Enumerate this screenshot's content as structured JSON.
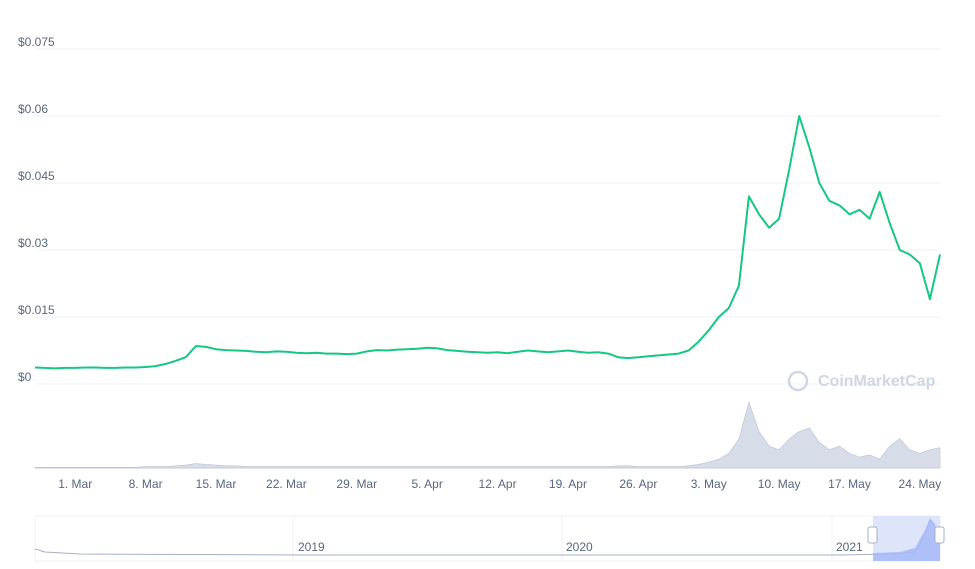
{
  "chart_data": {
    "type": "line",
    "watermark": "CoinMarketCap",
    "categories": [
      null,
      null,
      null,
      null,
      "1. Mar",
      null,
      null,
      null,
      null,
      null,
      null,
      "8. Mar",
      null,
      null,
      null,
      null,
      null,
      null,
      "15. Mar",
      null,
      null,
      null,
      null,
      null,
      null,
      "22. Mar",
      null,
      null,
      null,
      null,
      null,
      null,
      "29. Mar",
      null,
      null,
      null,
      null,
      null,
      null,
      "5. Apr",
      null,
      null,
      null,
      null,
      null,
      null,
      "12. Apr",
      null,
      null,
      null,
      null,
      null,
      null,
      "19. Apr",
      null,
      null,
      null,
      null,
      null,
      null,
      "26. Apr",
      null,
      null,
      null,
      null,
      null,
      null,
      "3. May",
      null,
      null,
      null,
      null,
      null,
      null,
      "10. May",
      null,
      null,
      null,
      null,
      null,
      null,
      "17. May",
      null,
      null,
      null,
      null,
      null,
      null,
      "24. May",
      null,
      null
    ],
    "series": [
      {
        "color": "#16c784",
        "values": [
          0.0037,
          0.0036,
          0.0035,
          0.0036,
          0.0036,
          0.0037,
          0.0037,
          0.0036,
          0.0036,
          0.0037,
          0.0037,
          0.0038,
          0.004,
          0.0045,
          0.0052,
          0.006,
          0.0085,
          0.0083,
          0.0078,
          0.0076,
          0.0075,
          0.0074,
          0.0072,
          0.0071,
          0.0073,
          0.0072,
          0.007,
          0.0069,
          0.007,
          0.0068,
          0.0068,
          0.0067,
          0.0068,
          0.0073,
          0.0076,
          0.0075,
          0.0077,
          0.0078,
          0.0079,
          0.0081,
          0.008,
          0.0076,
          0.0074,
          0.0072,
          0.0071,
          0.007,
          0.0071,
          0.0069,
          0.0072,
          0.0075,
          0.0073,
          0.0071,
          0.0073,
          0.0075,
          0.0072,
          0.007,
          0.0071,
          0.0068,
          0.006,
          0.0058,
          0.006,
          0.0062,
          0.0064,
          0.0066,
          0.0068,
          0.0075,
          0.0095,
          0.012,
          0.015,
          0.017,
          0.022,
          0.042,
          0.038,
          0.035,
          0.037,
          0.048,
          0.06,
          0.053,
          0.045,
          0.041,
          0.04,
          0.038,
          0.039,
          0.037,
          0.043,
          0.036,
          0.03,
          0.029,
          0.027,
          0.019,
          0.029
        ]
      },
      {
        "color": "#cfd6e4",
        "axis": "y2",
        "values": [
          1,
          1,
          1,
          1,
          1,
          1,
          1,
          1,
          1,
          1,
          1,
          2,
          2,
          2,
          3,
          4,
          6,
          5,
          4,
          3,
          3,
          2,
          2,
          2,
          2,
          2,
          2,
          2,
          2,
          2,
          2,
          2,
          2,
          2,
          2,
          2,
          2,
          2,
          2,
          2,
          2,
          2,
          2,
          2,
          2,
          2,
          2,
          2,
          2,
          2,
          2,
          2,
          2,
          2,
          2,
          2,
          2,
          2,
          3,
          3,
          2,
          2,
          2,
          2,
          2,
          3,
          5,
          8,
          12,
          20,
          40,
          90,
          50,
          30,
          25,
          40,
          50,
          55,
          35,
          25,
          30,
          20,
          15,
          18,
          12,
          30,
          40,
          25,
          20,
          25,
          28
        ]
      }
    ],
    "ylim": [
      0,
      0.075
    ],
    "yticks": [
      {
        "value": 0,
        "label": "$0"
      },
      {
        "value": 0.015,
        "label": "$0.015"
      },
      {
        "value": 0.03,
        "label": "$0.03"
      },
      {
        "value": 0.045,
        "label": "$0.045"
      },
      {
        "value": 0.06,
        "label": "$0.06"
      },
      {
        "value": 0.075,
        "label": "$0.075"
      }
    ],
    "y2lim": [
      0,
      100
    ],
    "grid": true,
    "navigator": {
      "labels": [
        "2019",
        "2020",
        "2021"
      ]
    }
  }
}
